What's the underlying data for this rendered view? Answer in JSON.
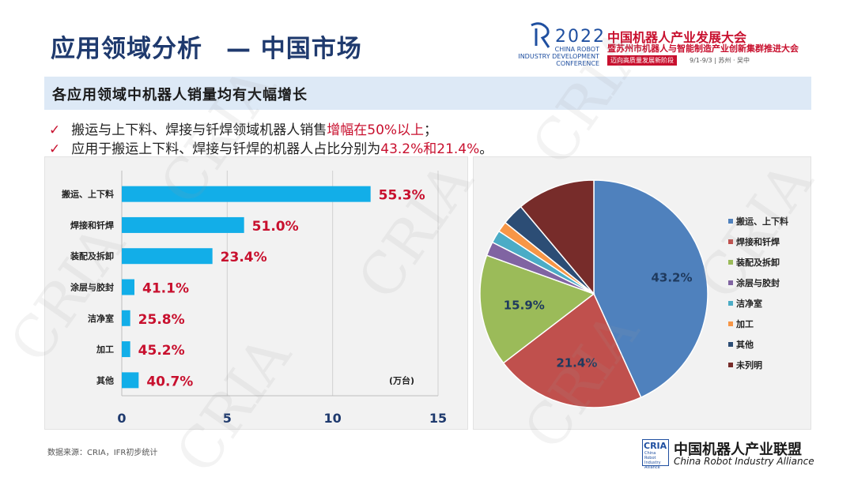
{
  "header": {
    "title": "应用领域分析",
    "title_sep": "— 中国市场"
  },
  "logo": {
    "year": "2022",
    "en": "CHINA ROBOT\nINDUSTRY DEVELOPMENT\nCONFERENCE",
    "cn1": "中国机器人产业发展大会",
    "cn2": "暨苏州市机器人与智能制造产业创新集群推进大会",
    "tag": "迈向高质量发展新阶段",
    "date": "9/1-9/3 | 苏州 · 吴中"
  },
  "subtitle": "各应用领域中机器人销量均有大幅增长",
  "bullets": [
    {
      "check": "✓",
      "pre": "搬运与上下料、焊接与钎焊领域机器人销售",
      "hl": "增幅在50%以上",
      "post": "；"
    },
    {
      "check": "✓",
      "pre": "应用于搬运上下料、焊接与钎焊的机器人占比分别为",
      "hl": "43.2%和21.4%",
      "post": "。"
    }
  ],
  "chart_data": [
    {
      "type": "bar",
      "orientation": "horizontal",
      "categories": [
        "搬运、上下料",
        "焊接和钎焊",
        "装配及拆卸",
        "涂层与胶封",
        "洁净室",
        "加工",
        "其他"
      ],
      "values": [
        11.8,
        5.8,
        4.3,
        0.6,
        0.4,
        0.4,
        0.8
      ],
      "data_labels": [
        "55.3%",
        "51.0%",
        "23.4%",
        "41.1%",
        "25.8%",
        "45.2%",
        "40.7%"
      ],
      "unit_label": "(万台)",
      "xlim": [
        0,
        15
      ],
      "xticks": [
        0,
        5,
        10,
        15
      ],
      "grid": "vertical",
      "colors": {
        "bar": "#12aee8",
        "label": "#c8102e"
      }
    },
    {
      "type": "pie",
      "labels": [
        "搬运、上下料",
        "焊接和钎焊",
        "装配及拆卸",
        "涂层与胶封",
        "洁净室",
        "加工",
        "其他",
        "未列明"
      ],
      "values": [
        43.2,
        21.4,
        15.9,
        2.0,
        1.8,
        1.5,
        3.1,
        11.1
      ],
      "data_labels": [
        "43.2%",
        "21.4%",
        "15.9%",
        "",
        "",
        "",
        "",
        ""
      ],
      "colors": [
        "#4f81bd",
        "#c0504d",
        "#9bbb59",
        "#8064a2",
        "#4bacc6",
        "#f79646",
        "#2c4d75",
        "#772c2a"
      ],
      "legend": "right"
    }
  ],
  "source": "数据来源：CRIA，IFR初步统计",
  "footer": {
    "abbr": "CRIA",
    "small": "China\nRobot\nIndustry\nAlliance",
    "cn": "中国机器人产业联盟",
    "en": "China Robot Industry Alliance"
  },
  "watermark": "CRIA"
}
